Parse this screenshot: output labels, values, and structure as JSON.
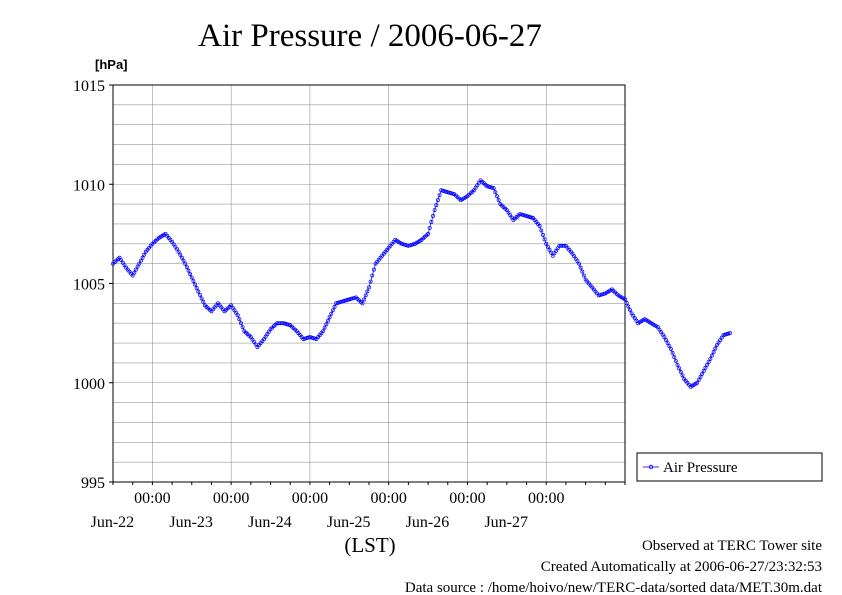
{
  "chart_data": {
    "type": "line",
    "title": "Air Pressure / 2006-06-27",
    "ylabel": "[hPa]",
    "xlabel": "(LST)",
    "ylim": [
      995,
      1015
    ],
    "y_ticks": [
      "1015",
      "1010",
      "1005",
      "1000",
      "995"
    ],
    "y_tick_values": [
      1015,
      1010,
      1005,
      1000,
      995
    ],
    "x_range_days": [
      "2006-06-21T12:00",
      "2006-06-27T24:00"
    ],
    "x_ticks": [
      {
        "time": "00:00",
        "date": "Jun-22"
      },
      {
        "time": "00:00",
        "date": "Jun-23"
      },
      {
        "time": "00:00",
        "date": "Jun-24"
      },
      {
        "time": "00:00",
        "date": "Jun-25"
      },
      {
        "time": "00:00",
        "date": "Jun-26"
      },
      {
        "time": "00:00",
        "date": "Jun-27"
      }
    ],
    "grid": true,
    "legend_position": "right",
    "series": [
      {
        "name": "Air Pressure",
        "color": "#0000ff",
        "points": [
          [
            "2006-06-21T12:00",
            1006.0
          ],
          [
            "2006-06-21T14:00",
            1006.3
          ],
          [
            "2006-06-21T16:00",
            1005.8
          ],
          [
            "2006-06-21T18:00",
            1005.4
          ],
          [
            "2006-06-21T20:00",
            1006.0
          ],
          [
            "2006-06-21T22:00",
            1006.6
          ],
          [
            "2006-06-22T00:00",
            1007.0
          ],
          [
            "2006-06-22T02:00",
            1007.3
          ],
          [
            "2006-06-22T04:00",
            1007.5
          ],
          [
            "2006-06-22T06:00",
            1007.1
          ],
          [
            "2006-06-22T08:00",
            1006.6
          ],
          [
            "2006-06-22T10:00",
            1006.0
          ],
          [
            "2006-06-22T12:00",
            1005.3
          ],
          [
            "2006-06-22T14:00",
            1004.6
          ],
          [
            "2006-06-22T16:00",
            1003.9
          ],
          [
            "2006-06-22T18:00",
            1003.6
          ],
          [
            "2006-06-22T20:00",
            1004.0
          ],
          [
            "2006-06-22T22:00",
            1003.6
          ],
          [
            "2006-06-23T00:00",
            1003.9
          ],
          [
            "2006-06-23T02:00",
            1003.4
          ],
          [
            "2006-06-23T04:00",
            1002.6
          ],
          [
            "2006-06-23T06:00",
            1002.3
          ],
          [
            "2006-06-23T08:00",
            1001.8
          ],
          [
            "2006-06-23T10:00",
            1002.2
          ],
          [
            "2006-06-23T12:00",
            1002.7
          ],
          [
            "2006-06-23T14:00",
            1003.0
          ],
          [
            "2006-06-23T16:00",
            1003.0
          ],
          [
            "2006-06-23T18:00",
            1002.9
          ],
          [
            "2006-06-23T20:00",
            1002.6
          ],
          [
            "2006-06-23T22:00",
            1002.2
          ],
          [
            "2006-06-24T00:00",
            1002.3
          ],
          [
            "2006-06-24T02:00",
            1002.2
          ],
          [
            "2006-06-24T04:00",
            1002.6
          ],
          [
            "2006-06-24T06:00",
            1003.3
          ],
          [
            "2006-06-24T08:00",
            1004.0
          ],
          [
            "2006-06-24T10:00",
            1004.1
          ],
          [
            "2006-06-24T12:00",
            1004.2
          ],
          [
            "2006-06-24T14:00",
            1004.3
          ],
          [
            "2006-06-24T16:00",
            1004.0
          ],
          [
            "2006-06-24T18:00",
            1004.8
          ],
          [
            "2006-06-24T20:00",
            1006.0
          ],
          [
            "2006-06-24T22:00",
            1006.4
          ],
          [
            "2006-06-25T00:00",
            1006.8
          ],
          [
            "2006-06-25T02:00",
            1007.2
          ],
          [
            "2006-06-25T04:00",
            1007.0
          ],
          [
            "2006-06-25T06:00",
            1006.9
          ],
          [
            "2006-06-25T08:00",
            1007.0
          ],
          [
            "2006-06-25T10:00",
            1007.2
          ],
          [
            "2006-06-25T12:00",
            1007.5
          ],
          [
            "2006-06-25T14:00",
            1008.7
          ],
          [
            "2006-06-25T16:00",
            1009.7
          ],
          [
            "2006-06-25T18:00",
            1009.6
          ],
          [
            "2006-06-25T20:00",
            1009.5
          ],
          [
            "2006-06-25T22:00",
            1009.2
          ],
          [
            "2006-06-26T00:00",
            1009.4
          ],
          [
            "2006-06-26T02:00",
            1009.7
          ],
          [
            "2006-06-26T04:00",
            1010.2
          ],
          [
            "2006-06-26T06:00",
            1009.9
          ],
          [
            "2006-06-26T08:00",
            1009.8
          ],
          [
            "2006-06-26T10:00",
            1009.0
          ],
          [
            "2006-06-26T12:00",
            1008.7
          ],
          [
            "2006-06-26T14:00",
            1008.2
          ],
          [
            "2006-06-26T16:00",
            1008.5
          ],
          [
            "2006-06-26T18:00",
            1008.4
          ],
          [
            "2006-06-26T20:00",
            1008.3
          ],
          [
            "2006-06-26T22:00",
            1007.9
          ],
          [
            "2006-06-27T00:00",
            1007.0
          ],
          [
            "2006-06-27T02:00",
            1006.4
          ],
          [
            "2006-06-27T04:00",
            1006.9
          ],
          [
            "2006-06-27T06:00",
            1006.9
          ],
          [
            "2006-06-27T08:00",
            1006.5
          ],
          [
            "2006-06-27T10:00",
            1006.0
          ],
          [
            "2006-06-27T12:00",
            1005.2
          ],
          [
            "2006-06-27T14:00",
            1004.8
          ],
          [
            "2006-06-27T16:00",
            1004.4
          ],
          [
            "2006-06-27T18:00",
            1004.5
          ],
          [
            "2006-06-27T20:00",
            1004.7
          ],
          [
            "2006-06-27T22:00",
            1004.4
          ],
          [
            "2006-06-28T00:00",
            1004.2
          ],
          [
            "2006-06-28T02:00",
            1003.5
          ],
          [
            "2006-06-28T04:00",
            1003.0
          ],
          [
            "2006-06-28T06:00",
            1003.2
          ],
          [
            "2006-06-28T08:00",
            1003.0
          ],
          [
            "2006-06-28T10:00",
            1002.8
          ],
          [
            "2006-06-28T12:00",
            1002.3
          ],
          [
            "2006-06-28T14:00",
            1001.7
          ],
          [
            "2006-06-28T16:00",
            1000.9
          ],
          [
            "2006-06-28T18:00",
            1000.2
          ],
          [
            "2006-06-28T20:00",
            999.8
          ],
          [
            "2006-06-28T22:00",
            1000.0
          ],
          [
            "2006-06-29T00:00",
            1000.6
          ],
          [
            "2006-06-29T02:00",
            1001.2
          ],
          [
            "2006-06-29T04:00",
            1001.9
          ],
          [
            "2006-06-29T06:00",
            1002.4
          ],
          [
            "2006-06-29T08:00",
            1002.5
          ]
        ]
      }
    ]
  },
  "footer": {
    "site": "Observed at TERC Tower site",
    "created": "Created Automatically at 2006-06-27/23:32:53",
    "source": "Data source : /home/hoivo/new/TERC-data/sorted  data/MET.30m.dat"
  }
}
